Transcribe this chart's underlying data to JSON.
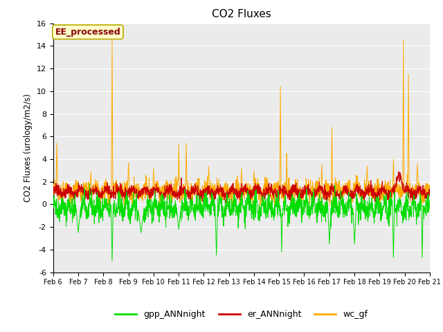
{
  "title": "CO2 Fluxes",
  "ylabel": "CO2 Fluxes (urology/m2/s)",
  "ylim": [
    -6,
    16
  ],
  "yticks": [
    -6,
    -4,
    -2,
    0,
    2,
    4,
    6,
    8,
    10,
    12,
    14,
    16
  ],
  "num_days": 15,
  "num_points": 2160,
  "colors": {
    "gpp": "#00dd00",
    "er": "#cc0000",
    "wc": "#ffaa00",
    "background": "#ebebeb",
    "annotation_bg": "#ffffcc",
    "annotation_border": "#bbaa00"
  },
  "annotation_text": "EE_processed",
  "legend_labels": [
    "gpp_ANNnight",
    "er_ANNnight",
    "wc_gf"
  ],
  "x_tick_labels": [
    "Feb 6",
    "Feb 7",
    "Feb 8",
    "Feb 9",
    "Feb 10",
    "Feb 11",
    "Feb 12",
    "Feb 13",
    "Feb 14",
    "Feb 15",
    "Feb 16",
    "Feb 17",
    "Feb 18",
    "Feb 19",
    "Feb 20",
    "Feb 21"
  ],
  "line_width": 0.7
}
